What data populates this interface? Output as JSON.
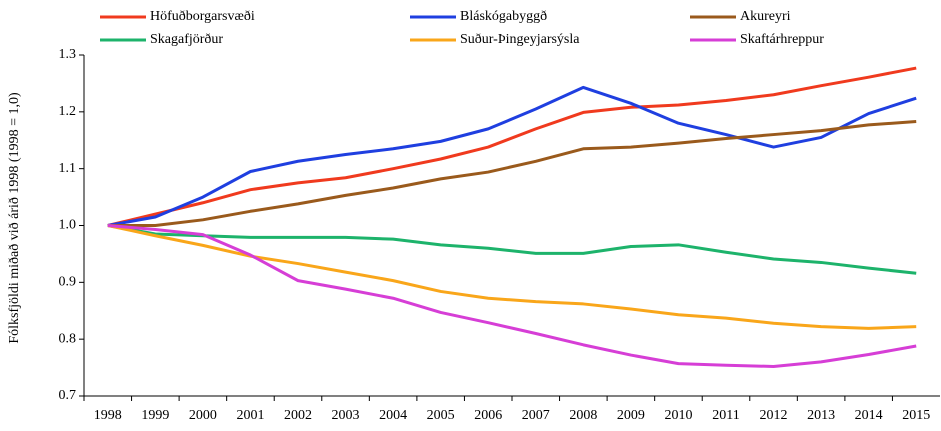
{
  "chart_data": {
    "type": "line",
    "ylabel": "Fólksfjöldi miðað við árið 1998 (1998 = 1,0)",
    "categories": [
      "1998",
      "1999",
      "2000",
      "2001",
      "2002",
      "2003",
      "2004",
      "2005",
      "2006",
      "2007",
      "2008",
      "2009",
      "2010",
      "2011",
      "2012",
      "2013",
      "2014",
      "2015"
    ],
    "ylim": [
      0.7,
      1.3
    ],
    "yticks": [
      0.7,
      0.8,
      0.9,
      {
        "value": 1,
        "label": "1.0"
      },
      1.1,
      1.2,
      1.3
    ],
    "grid": false,
    "legend": "top",
    "series": [
      {
        "name": "Höfuðborgarsvæði",
        "color": "#f03a1e",
        "values": [
          1.0,
          1.02,
          1.04,
          1.063,
          1.075,
          1.084,
          1.1,
          1.117,
          1.138,
          1.17,
          1.199,
          1.208,
          1.212,
          1.22,
          1.23,
          1.246,
          1.261,
          1.277
        ]
      },
      {
        "name": "Bláskógabyggð",
        "color": "#1f3fe0",
        "values": [
          1.0,
          1.015,
          1.05,
          1.095,
          1.113,
          1.125,
          1.135,
          1.148,
          1.17,
          1.205,
          1.243,
          1.215,
          1.18,
          1.16,
          1.138,
          1.155,
          1.197,
          1.224
        ]
      },
      {
        "name": "Akureyri",
        "color": "#9a5a1c",
        "values": [
          1.0,
          1.0,
          1.01,
          1.025,
          1.038,
          1.053,
          1.066,
          1.082,
          1.094,
          1.113,
          1.135,
          1.138,
          1.145,
          1.153,
          1.16,
          1.167,
          1.177,
          1.183
        ]
      },
      {
        "name": "Skagafjörður",
        "color": "#1db36b",
        "values": [
          1.0,
          0.985,
          0.982,
          0.979,
          0.979,
          0.979,
          0.976,
          0.966,
          0.96,
          0.951,
          0.951,
          0.963,
          0.966,
          0.953,
          0.941,
          0.935,
          0.925,
          0.916
        ]
      },
      {
        "name": "Suður-Þingeyjarsýsla",
        "color": "#f9a61a",
        "values": [
          1.0,
          0.982,
          0.965,
          0.946,
          0.933,
          0.918,
          0.903,
          0.884,
          0.872,
          0.866,
          0.862,
          0.853,
          0.843,
          0.837,
          0.828,
          0.822,
          0.819,
          0.822
        ]
      },
      {
        "name": "Skaftárhreppur",
        "color": "#d63ed6",
        "values": [
          1.0,
          0.993,
          0.984,
          0.948,
          0.903,
          0.888,
          0.872,
          0.847,
          0.829,
          0.81,
          0.79,
          0.772,
          0.757,
          0.754,
          0.752,
          0.76,
          0.773,
          0.788
        ]
      }
    ]
  }
}
